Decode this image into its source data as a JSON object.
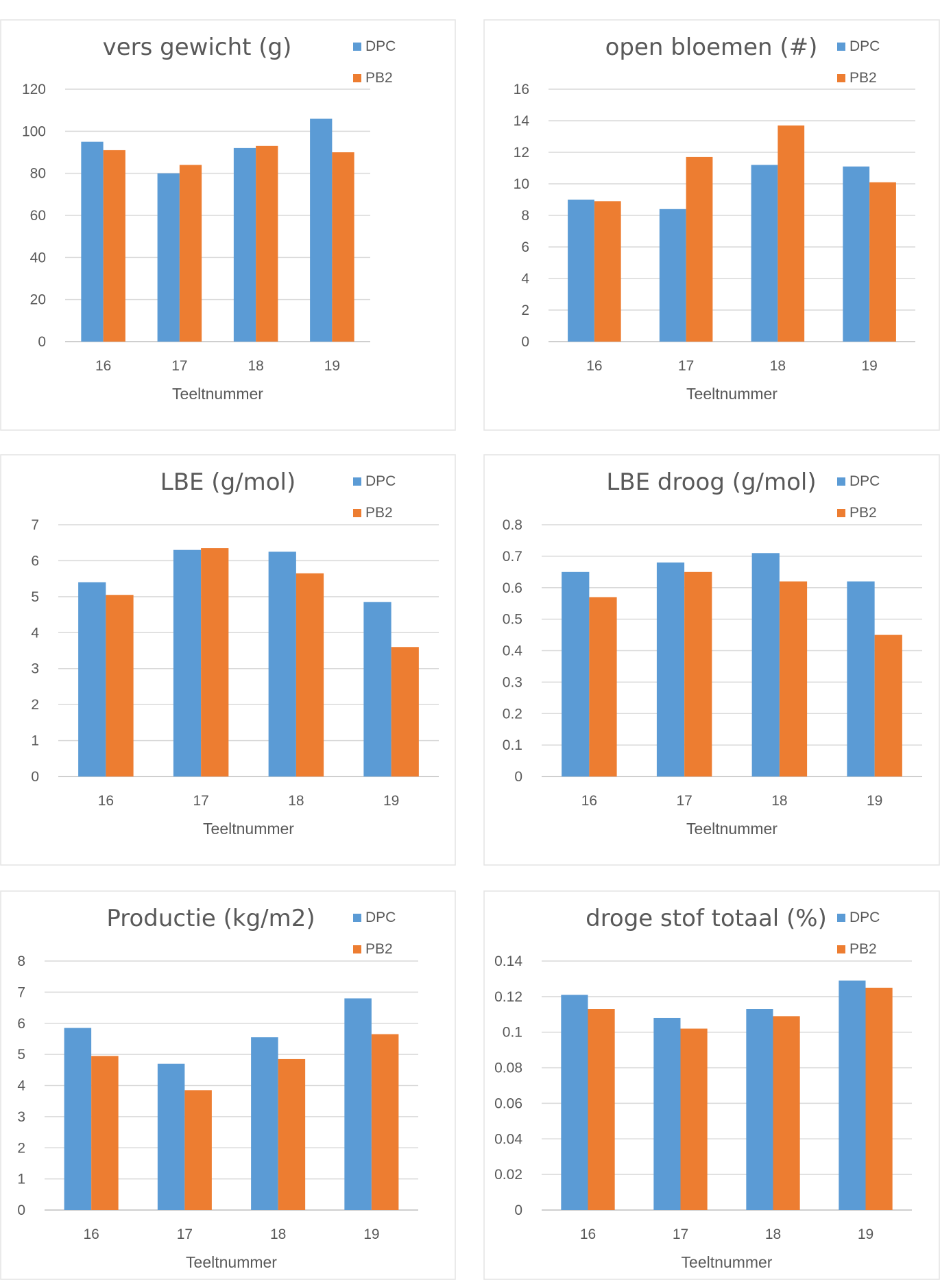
{
  "colors": {
    "DPC": "#5b9bd5",
    "PB2": "#ed7d31"
  },
  "chart_data": [
    {
      "type": "bar",
      "title": "vers gewicht (g)",
      "xlabel": "Teeltnummer",
      "ylabel": "",
      "categories": [
        "16",
        "17",
        "18",
        "19"
      ],
      "series": [
        {
          "name": "DPC",
          "values": [
            95,
            80,
            92,
            106
          ]
        },
        {
          "name": "PB2",
          "values": [
            91,
            84,
            93,
            90
          ]
        }
      ],
      "ylim": [
        0,
        120
      ],
      "yticks": [
        "0",
        "20",
        "40",
        "60",
        "80",
        "100",
        "120"
      ],
      "grid": true,
      "legend": "top-right"
    },
    {
      "type": "bar",
      "title": "open bloemen (#)",
      "xlabel": "Teeltnummer",
      "ylabel": "",
      "categories": [
        "16",
        "17",
        "18",
        "19"
      ],
      "series": [
        {
          "name": "DPC",
          "values": [
            9.0,
            8.4,
            11.2,
            11.1
          ]
        },
        {
          "name": "PB2",
          "values": [
            8.9,
            11.7,
            13.7,
            10.1
          ]
        }
      ],
      "ylim": [
        0,
        16
      ],
      "yticks": [
        "0",
        "2",
        "4",
        "6",
        "8",
        "10",
        "12",
        "14",
        "16"
      ],
      "grid": true,
      "legend": "top-right"
    },
    {
      "type": "bar",
      "title": "LBE (g/mol)",
      "xlabel": "Teeltnummer",
      "ylabel": "",
      "categories": [
        "16",
        "17",
        "18",
        "19"
      ],
      "series": [
        {
          "name": "DPC",
          "values": [
            5.4,
            6.3,
            6.25,
            4.85
          ]
        },
        {
          "name": "PB2",
          "values": [
            5.05,
            6.35,
            5.65,
            3.6
          ]
        }
      ],
      "ylim": [
        0,
        7
      ],
      "yticks": [
        "0",
        "1",
        "2",
        "3",
        "4",
        "5",
        "6",
        "7"
      ],
      "grid": true,
      "legend": "top-right"
    },
    {
      "type": "bar",
      "title": "LBE droog (g/mol)",
      "xlabel": "Teeltnummer",
      "ylabel": "",
      "categories": [
        "16",
        "17",
        "18",
        "19"
      ],
      "series": [
        {
          "name": "DPC",
          "values": [
            0.65,
            0.68,
            0.71,
            0.62
          ]
        },
        {
          "name": "PB2",
          "values": [
            0.57,
            0.65,
            0.62,
            0.45
          ]
        }
      ],
      "ylim": [
        0,
        0.8
      ],
      "yticks": [
        "0",
        "0.1",
        "0.2",
        "0.3",
        "0.4",
        "0.5",
        "0.6",
        "0.7",
        "0.8"
      ],
      "grid": true,
      "legend": "top-right"
    },
    {
      "type": "bar",
      "title": "Productie (kg/m2)",
      "xlabel": "Teeltnummer",
      "ylabel": "",
      "categories": [
        "16",
        "17",
        "18",
        "19"
      ],
      "series": [
        {
          "name": "DPC",
          "values": [
            5.85,
            4.7,
            5.55,
            6.8
          ]
        },
        {
          "name": "PB2",
          "values": [
            4.95,
            3.85,
            4.85,
            5.65
          ]
        }
      ],
      "ylim": [
        0,
        8
      ],
      "yticks": [
        "0",
        "1",
        "2",
        "3",
        "4",
        "5",
        "6",
        "7",
        "8"
      ],
      "grid": true,
      "legend": "top-right"
    },
    {
      "type": "bar",
      "title": "droge stof totaal (%)",
      "xlabel": "Teeltnummer",
      "ylabel": "",
      "categories": [
        "16",
        "17",
        "18",
        "19"
      ],
      "series": [
        {
          "name": "DPC",
          "values": [
            0.121,
            0.108,
            0.113,
            0.129
          ]
        },
        {
          "name": "PB2",
          "values": [
            0.113,
            0.102,
            0.109,
            0.125
          ]
        }
      ],
      "ylim": [
        0,
        0.14
      ],
      "yticks": [
        "0",
        "0.02",
        "0.04",
        "0.06",
        "0.08",
        "0.1",
        "0.12",
        "0.14"
      ],
      "grid": true,
      "legend": "top-right"
    }
  ]
}
